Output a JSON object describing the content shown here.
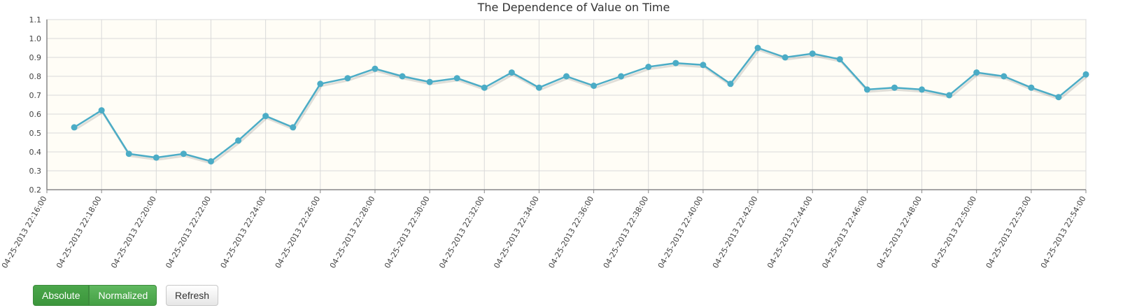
{
  "chart_data": {
    "type": "line",
    "title": "The Dependence of Value on Time",
    "xlabel": "",
    "ylabel": "",
    "ylim": [
      0.2,
      1.1
    ],
    "yticks": [
      "0.2",
      "0.3",
      "0.4",
      "0.5",
      "0.6",
      "0.7",
      "0.8",
      "0.9",
      "1.0",
      "1.1"
    ],
    "xlim": [
      "04-25-2013 22:16:00",
      "04-25-2013 22:54:00"
    ],
    "xticks": [
      "04-25-2013 22:16:00",
      "04-25-2013 22:18:00",
      "04-25-2013 22:20:00",
      "04-25-2013 22:22:00",
      "04-25-2013 22:24:00",
      "04-25-2013 22:26:00",
      "04-25-2013 22:28:00",
      "04-25-2013 22:30:00",
      "04-25-2013 22:32:00",
      "04-25-2013 22:34:00",
      "04-25-2013 22:36:00",
      "04-25-2013 22:38:00",
      "04-25-2013 22:40:00",
      "04-25-2013 22:42:00",
      "04-25-2013 22:44:00",
      "04-25-2013 22:46:00",
      "04-25-2013 22:48:00",
      "04-25-2013 22:50:00",
      "04-25-2013 22:52:00",
      "04-25-2013 22:54:00"
    ],
    "grid": true,
    "colors": {
      "line": "#4bacc6",
      "plot_background": "#fffdf6",
      "grid": "#d9d9d9"
    },
    "series": [
      {
        "x": [
          "04-25-2013 22:17:00",
          "04-25-2013 22:18:00",
          "04-25-2013 22:19:00",
          "04-25-2013 22:20:00",
          "04-25-2013 22:21:00",
          "04-25-2013 22:22:00",
          "04-25-2013 22:23:00",
          "04-25-2013 22:24:00",
          "04-25-2013 22:25:00",
          "04-25-2013 22:26:00",
          "04-25-2013 22:27:00",
          "04-25-2013 22:28:00",
          "04-25-2013 22:29:00",
          "04-25-2013 22:30:00",
          "04-25-2013 22:31:00",
          "04-25-2013 22:32:00",
          "04-25-2013 22:33:00",
          "04-25-2013 22:34:00",
          "04-25-2013 22:35:00",
          "04-25-2013 22:36:00",
          "04-25-2013 22:37:00",
          "04-25-2013 22:38:00",
          "04-25-2013 22:39:00",
          "04-25-2013 22:40:00",
          "04-25-2013 22:41:00",
          "04-25-2013 22:42:00",
          "04-25-2013 22:43:00",
          "04-25-2013 22:44:00",
          "04-25-2013 22:45:00",
          "04-25-2013 22:46:00",
          "04-25-2013 22:47:00",
          "04-25-2013 22:48:00",
          "04-25-2013 22:49:00",
          "04-25-2013 22:50:00",
          "04-25-2013 22:51:00",
          "04-25-2013 22:52:00",
          "04-25-2013 22:53:00",
          "04-25-2013 22:54:00"
        ],
        "values": [
          0.53,
          0.62,
          0.39,
          0.37,
          0.39,
          0.35,
          0.46,
          0.59,
          0.53,
          0.76,
          0.79,
          0.84,
          0.8,
          0.77,
          0.79,
          0.74,
          0.82,
          0.74,
          0.8,
          0.75,
          0.8,
          0.85,
          0.87,
          0.86,
          0.76,
          0.95,
          0.9,
          0.92,
          0.89,
          0.73,
          0.74,
          0.73,
          0.7,
          0.82,
          0.8,
          0.74,
          0.69,
          0.81
        ]
      }
    ]
  },
  "controls": {
    "absolute_label": "Absolute",
    "normalized_label": "Normalized",
    "refresh_label": "Refresh",
    "active_color": "#4cae4c"
  }
}
